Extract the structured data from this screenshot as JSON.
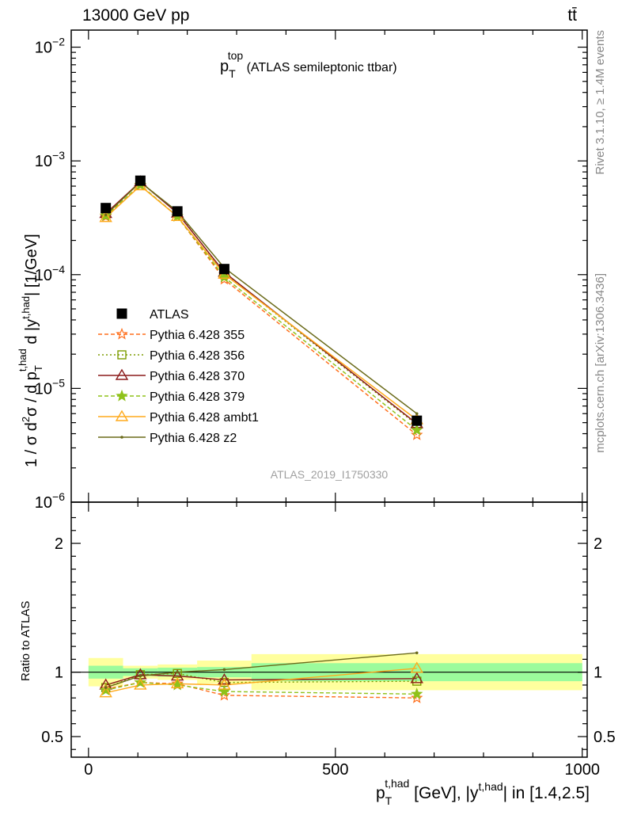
{
  "header": {
    "left": "13000 GeV pp",
    "right": "tt̄"
  },
  "side_labels": {
    "rivet": "Rivet 3.1.10, ≥ 1.4M events",
    "mcplots": "mcplots.cern.ch [arXiv:1306.3436]"
  },
  "chart_data": {
    "type": "line",
    "title": {
      "main": "p",
      "sub": "T",
      "sup": "top",
      "rest": " (ATLAS semileptonic ttbar)"
    },
    "watermark": "ATLAS_2019_I1750330",
    "ylabel": {
      "a": "1 / σ d",
      "a_sup": "2",
      "b": "σ /  d p",
      "b_sub": "T",
      "b_sup": "t,had",
      "c": " d |y",
      "c_sup": "t,had",
      "d": "| [1/GeV]"
    },
    "xlabel": {
      "a": "p",
      "a_sub": "T",
      "a_sup": "t,had",
      "b": " [GeV], |y",
      "b_sup": "t,had",
      "c": "| in [1.4,2.5]"
    },
    "ratio_ylabel": "Ratio to ATLAS",
    "xlim": [
      -35,
      1010
    ],
    "ylim_log_exp": [
      -6,
      -1.85
    ],
    "ratio_ylim": [
      0.34,
      2.32
    ],
    "log_y": true,
    "x_ticks": [
      {
        "value": 0,
        "label": "0"
      },
      {
        "value": 500,
        "label": "500"
      },
      {
        "value": 1000,
        "label": "1000"
      }
    ],
    "y_ticks": [
      {
        "exp": -2,
        "label": "10",
        "sup": "−2"
      },
      {
        "exp": -3,
        "label": "10",
        "sup": "−3"
      },
      {
        "exp": -4,
        "label": "10",
        "sup": "−4"
      },
      {
        "exp": -5,
        "label": "10",
        "sup": "−5"
      },
      {
        "exp": -6,
        "label": "10",
        "sup": "−6"
      }
    ],
    "ratio_ticks": [
      {
        "value": 0.5,
        "label": "0.5"
      },
      {
        "value": 1,
        "label": "1"
      },
      {
        "value": 2,
        "label": "2"
      }
    ],
    "data_bins": [
      {
        "lo": 0,
        "hi": 70,
        "x": 35,
        "y": 0.000385,
        "stat": 0.05,
        "tot": 0.11
      },
      {
        "lo": 70,
        "hi": 140,
        "x": 105,
        "y": 0.00067,
        "stat": 0.03,
        "tot": 0.05
      },
      {
        "lo": 140,
        "hi": 220,
        "x": 180,
        "y": 0.00036,
        "stat": 0.035,
        "tot": 0.06
      },
      {
        "lo": 220,
        "hi": 330,
        "x": 275,
        "y": 0.000112,
        "stat": 0.04,
        "tot": 0.09
      },
      {
        "lo": 330,
        "hi": 1000,
        "x": 665,
        "y": 5.2e-06,
        "stat": 0.07,
        "tot": 0.14
      }
    ],
    "series": [
      {
        "name": "Pythia 6.428 355",
        "color": "#ff6f1c",
        "dash": "5,3",
        "marker": "star-open",
        "x": [
          35,
          105,
          180,
          275,
          665
        ],
        "y": [
          0.000325,
          0.00061,
          0.000325,
          9.1e-05,
          3.9e-06
        ],
        "ratio": [
          0.87,
          0.92,
          0.91,
          0.82,
          0.8
        ]
      },
      {
        "name": "Pythia 6.428 356",
        "color": "#7d9c00",
        "dash": "2,3",
        "marker": "square-open",
        "x": [
          35,
          105,
          180,
          275,
          665
        ],
        "y": [
          0.000338,
          0.000655,
          0.000355,
          0.000103,
          4.8e-06
        ],
        "ratio": [
          0.88,
          0.98,
          0.99,
          0.92,
          0.93
        ]
      },
      {
        "name": "Pythia 6.428 370",
        "color": "#8b1a1a",
        "dash": "",
        "marker": "triangle-open",
        "x": [
          35,
          105,
          180,
          275,
          665
        ],
        "y": [
          0.000345,
          0.000655,
          0.000348,
          0.000105,
          4.9e-06
        ],
        "ratio": [
          0.9,
          0.98,
          0.97,
          0.94,
          0.95
        ]
      },
      {
        "name": "Pythia 6.428 379",
        "color": "#8fc21a",
        "dash": "5,3",
        "marker": "star-filled",
        "x": [
          35,
          105,
          180,
          275,
          665
        ],
        "y": [
          0.00033,
          0.000615,
          0.000325,
          9.5e-05,
          4.3e-06
        ],
        "ratio": [
          0.86,
          0.92,
          0.9,
          0.85,
          0.83
        ]
      },
      {
        "name": "Pythia 6.428 ambt1",
        "color": "#ffaa1c",
        "dash": "",
        "marker": "triangle-open",
        "x": [
          35,
          105,
          180,
          275,
          665
        ],
        "y": [
          0.000318,
          0.000605,
          0.000325,
          0.000101,
          5.3e-06
        ],
        "ratio": [
          0.84,
          0.9,
          0.91,
          0.9,
          1.03
        ]
      },
      {
        "name": "Pythia 6.428 z2",
        "color": "#6b6b1a",
        "dash": "",
        "marker": "dot",
        "x": [
          35,
          105,
          180,
          275,
          665
        ],
        "y": [
          0.000335,
          0.00065,
          0.00036,
          0.000115,
          6e-06
        ],
        "ratio": [
          0.88,
          0.97,
          1.0,
          1.02,
          1.15
        ]
      }
    ],
    "legend": {
      "position": "middle-left",
      "entries": [
        "ATLAS",
        "Pythia 6.428 355",
        "Pythia 6.428 356",
        "Pythia 6.428 370",
        "Pythia 6.428 379",
        "Pythia 6.428 ambt1",
        "Pythia 6.428 z2"
      ]
    }
  }
}
